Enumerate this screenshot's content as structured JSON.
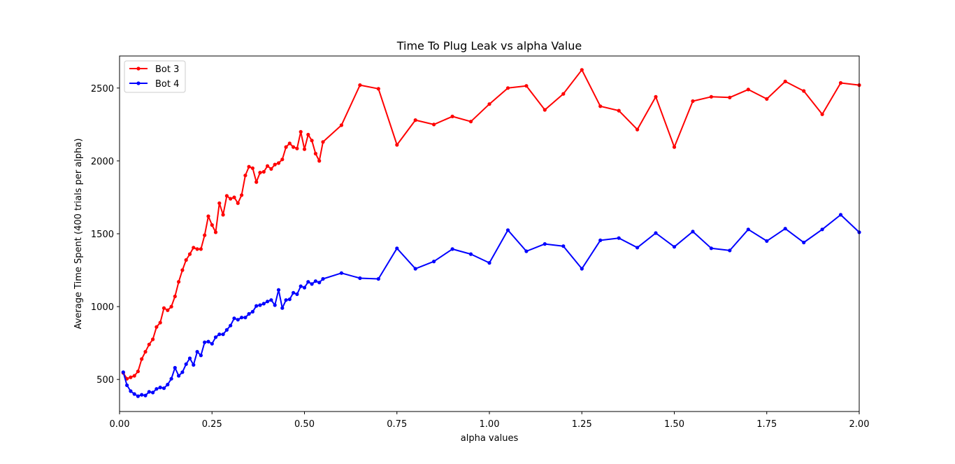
{
  "chart_data": {
    "type": "line",
    "title": "Time To Plug Leak vs alpha Value",
    "xlabel": "alpha values",
    "ylabel": "Average Time Spent (400 trials per alpha)",
    "xlim": [
      0.0,
      2.0
    ],
    "ylim": [
      280,
      2720
    ],
    "xticks": [
      0.0,
      0.25,
      0.5,
      0.75,
      1.0,
      1.25,
      1.5,
      1.75,
      2.0
    ],
    "xtick_labels": [
      "0.00",
      "0.25",
      "0.50",
      "0.75",
      "1.00",
      "1.25",
      "1.50",
      "1.75",
      "2.00"
    ],
    "yticks": [
      500,
      1000,
      1500,
      2000,
      2500
    ],
    "ytick_labels": [
      "500",
      "1000",
      "1500",
      "2000",
      "2500"
    ],
    "grid": false,
    "legend_position": "top-left",
    "series": [
      {
        "name": "Bot 3",
        "color": "#ff0000",
        "x": [
          0.01,
          0.02,
          0.03,
          0.04,
          0.05,
          0.06,
          0.07,
          0.08,
          0.09,
          0.1,
          0.11,
          0.12,
          0.13,
          0.14,
          0.15,
          0.16,
          0.17,
          0.18,
          0.19,
          0.2,
          0.21,
          0.22,
          0.23,
          0.24,
          0.25,
          0.26,
          0.27,
          0.28,
          0.29,
          0.3,
          0.31,
          0.32,
          0.33,
          0.34,
          0.35,
          0.36,
          0.37,
          0.38,
          0.39,
          0.4,
          0.41,
          0.42,
          0.43,
          0.44,
          0.45,
          0.46,
          0.47,
          0.48,
          0.49,
          0.5,
          0.51,
          0.52,
          0.53,
          0.54,
          0.55,
          0.6,
          0.65,
          0.7,
          0.75,
          0.8,
          0.85,
          0.9,
          0.95,
          1.0,
          1.05,
          1.1,
          1.15,
          1.2,
          1.25,
          1.3,
          1.35,
          1.4,
          1.45,
          1.5,
          1.55,
          1.6,
          1.65,
          1.7,
          1.75,
          1.8,
          1.85,
          1.9,
          1.95,
          2.0
        ],
        "y": [
          545,
          505,
          515,
          525,
          555,
          640,
          690,
          740,
          775,
          860,
          890,
          990,
          975,
          1000,
          1070,
          1170,
          1250,
          1320,
          1360,
          1405,
          1395,
          1395,
          1490,
          1620,
          1560,
          1510,
          1710,
          1630,
          1760,
          1740,
          1750,
          1710,
          1765,
          1900,
          1960,
          1950,
          1855,
          1920,
          1925,
          1965,
          1945,
          1975,
          1985,
          2010,
          2095,
          2120,
          2095,
          2085,
          2200,
          2080,
          2180,
          2140,
          2050,
          2000,
          2130,
          2245,
          2520,
          2495,
          2110,
          2280,
          2250,
          2305,
          2270,
          2390,
          2500,
          2515,
          2350,
          2460,
          2625,
          2375,
          2345,
          2215,
          2440,
          2095,
          2410,
          2440,
          2435,
          2490,
          2425,
          2545,
          2480,
          2320,
          2535,
          2520
        ]
      },
      {
        "name": "Bot 4",
        "color": "#0000ff",
        "x": [
          0.01,
          0.02,
          0.03,
          0.04,
          0.05,
          0.06,
          0.07,
          0.08,
          0.09,
          0.1,
          0.11,
          0.12,
          0.13,
          0.14,
          0.15,
          0.16,
          0.17,
          0.18,
          0.19,
          0.2,
          0.21,
          0.22,
          0.23,
          0.24,
          0.25,
          0.26,
          0.27,
          0.28,
          0.29,
          0.3,
          0.31,
          0.32,
          0.33,
          0.34,
          0.35,
          0.36,
          0.37,
          0.38,
          0.39,
          0.4,
          0.41,
          0.42,
          0.43,
          0.44,
          0.45,
          0.46,
          0.47,
          0.48,
          0.49,
          0.5,
          0.51,
          0.52,
          0.53,
          0.54,
          0.55,
          0.6,
          0.65,
          0.7,
          0.75,
          0.8,
          0.85,
          0.9,
          0.95,
          1.0,
          1.05,
          1.1,
          1.15,
          1.2,
          1.25,
          1.3,
          1.35,
          1.4,
          1.45,
          1.5,
          1.55,
          1.6,
          1.65,
          1.7,
          1.75,
          1.8,
          1.85,
          1.9,
          1.95,
          2.0
        ],
        "y": [
          550,
          460,
          420,
          400,
          385,
          395,
          390,
          415,
          410,
          435,
          445,
          440,
          465,
          505,
          580,
          525,
          550,
          605,
          645,
          600,
          690,
          665,
          755,
          760,
          745,
          790,
          810,
          810,
          840,
          870,
          920,
          910,
          925,
          925,
          950,
          965,
          1005,
          1010,
          1020,
          1035,
          1045,
          1010,
          1115,
          990,
          1045,
          1050,
          1095,
          1085,
          1140,
          1130,
          1170,
          1155,
          1175,
          1165,
          1190,
          1230,
          1195,
          1190,
          1400,
          1260,
          1310,
          1395,
          1360,
          1300,
          1525,
          1380,
          1430,
          1415,
          1260,
          1455,
          1470,
          1405,
          1505,
          1410,
          1515,
          1400,
          1385,
          1530,
          1450,
          1535,
          1440,
          1530,
          1630,
          1510
        ]
      }
    ]
  }
}
